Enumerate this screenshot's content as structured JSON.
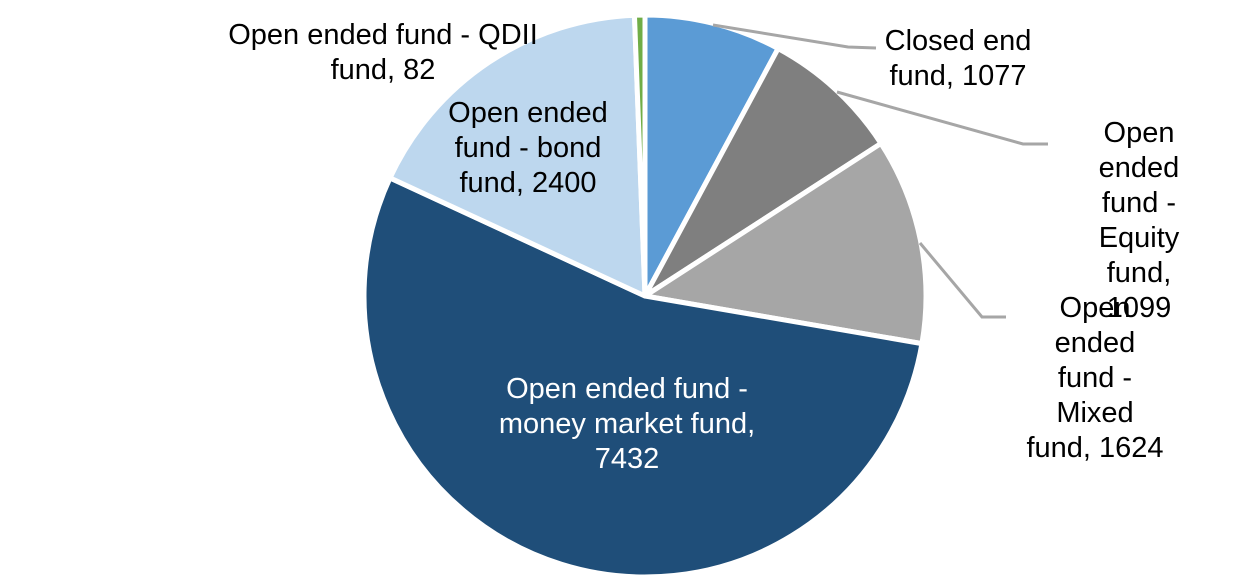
{
  "chart_data": {
    "type": "pie",
    "title": "",
    "total": 13714,
    "direction": "clockwise",
    "start_angle_deg": 0,
    "legend": "none",
    "background_color": "#FFFFFF",
    "slice_border_color": "#FFFFFF",
    "leader_line_color": "#A6A6A6",
    "outside_label_text_color": "#000000",
    "inside_label_text_color": "#FFFFFF",
    "slices": [
      {
        "id": "closed-end-fund",
        "name": "Closed end fund",
        "value": 1077,
        "color": "#5B9BD5",
        "label_display": "Closed end\nfund, 1077",
        "label_placement": "outside-right",
        "has_leader_line": true
      },
      {
        "id": "open-ended-equity-fund",
        "name": "Open ended fund - Equity fund",
        "value": 1099,
        "color": "#7F7F7F",
        "label_display": "Open ended\nfund - Equity\nfund, 1099",
        "label_placement": "outside-right",
        "has_leader_line": true
      },
      {
        "id": "open-ended-mixed-fund",
        "name": "Open ended fund - Mixed fund",
        "value": 1624,
        "color": "#A6A6A6",
        "label_display": "Open ended\nfund - Mixed\nfund, 1624",
        "label_placement": "outside-right",
        "has_leader_line": true
      },
      {
        "id": "open-ended-money-market-fund",
        "name": "Open ended fund - money market fund",
        "value": 7432,
        "color": "#1F4E79",
        "label_display": "Open ended fund -\nmoney market fund,\n7432",
        "label_placement": "inside",
        "has_leader_line": false
      },
      {
        "id": "open-ended-bond-fund",
        "name": "Open ended fund - bond fund",
        "value": 2400,
        "color": "#BDD7EE",
        "label_display": "Open ended\nfund - bond\nfund, 2400",
        "label_placement": "outside-left",
        "has_leader_line": false
      },
      {
        "id": "open-ended-qdii-fund",
        "name": "Open ended fund - QDII fund",
        "value": 82,
        "color": "#70AD47",
        "label_display": "Open ended fund - QDII\nfund, 82",
        "label_placement": "outside-left",
        "has_leader_line": false
      }
    ]
  }
}
